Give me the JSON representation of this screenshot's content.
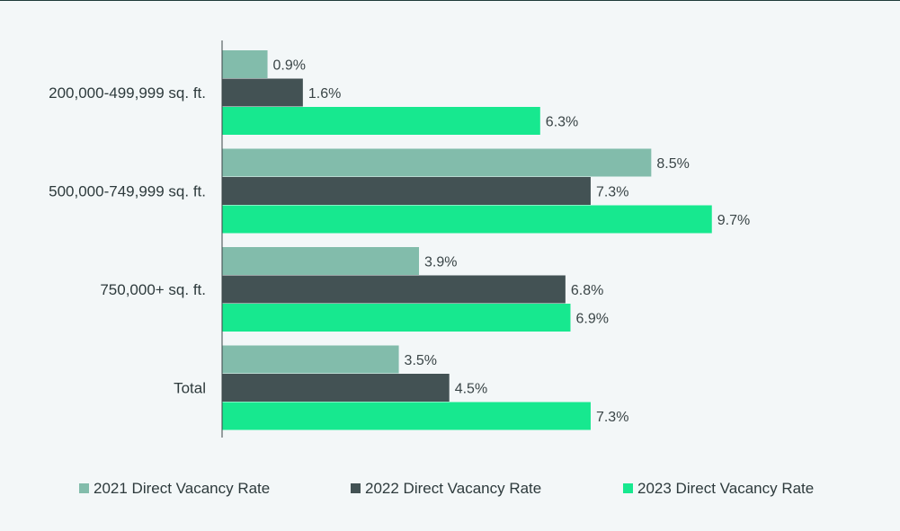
{
  "chart_data": {
    "type": "bar",
    "orientation": "horizontal",
    "categories": [
      "200,000-499,999 sq. ft.",
      "500,000-749,999 sq. ft.",
      "750,000+ sq. ft.",
      "Total"
    ],
    "series": [
      {
        "name": "2021 Direct Vacancy Rate",
        "color": "#82bcab",
        "values": [
          0.9,
          8.5,
          3.9,
          3.5
        ],
        "labels": [
          "0.9%",
          "8.5%",
          "3.9%",
          "3.5%"
        ]
      },
      {
        "name": "2022 Direct Vacancy Rate",
        "color": "#435254",
        "values": [
          1.6,
          7.3,
          6.8,
          4.5
        ],
        "labels": [
          "1.6%",
          "7.3%",
          "6.8%",
          "4.5%"
        ]
      },
      {
        "name": "2023 Direct Vacancy Rate",
        "color": "#17e88f",
        "values": [
          6.3,
          9.7,
          6.9,
          7.3
        ],
        "labels": [
          "6.3%",
          "9.7%",
          "6.9%",
          "7.3%"
        ]
      }
    ],
    "xlim": [
      0,
      10
    ],
    "grid": false,
    "legend_position": "bottom"
  }
}
